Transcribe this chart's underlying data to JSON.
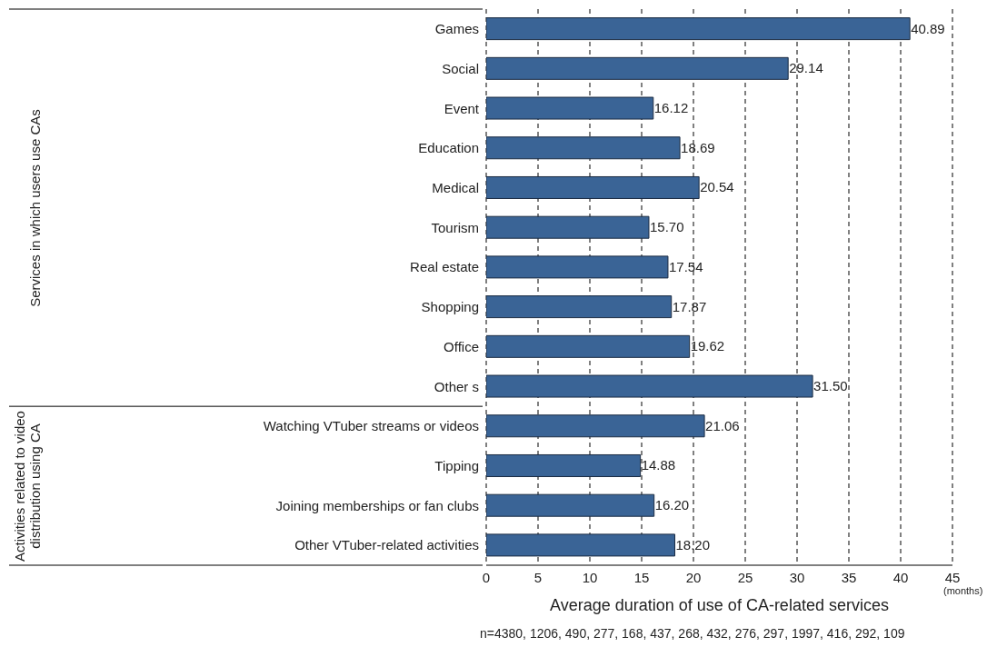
{
  "chart_data": {
    "type": "bar",
    "orientation": "horizontal",
    "xlabel": "Average duration of use of CA-related services",
    "categories": [
      "Games",
      "Social",
      "Event",
      "Education",
      "Medical",
      "Tourism",
      "Real estate",
      "Shopping",
      "Office",
      "Other s",
      "Watching VTuber streams or videos",
      "Tipping",
      "Joining memberships or fan clubs",
      "Other VTuber-related activities"
    ],
    "values": [
      40.89,
      29.14,
      16.12,
      18.69,
      20.54,
      15.7,
      17.54,
      17.87,
      19.62,
      31.5,
      21.06,
      14.88,
      16.2,
      18.2
    ],
    "value_labels": [
      "40.89",
      "29.14",
      "16.12",
      "18.69",
      "20.54",
      "15.70",
      "17.54",
      "17.87",
      "19.62",
      "31.50",
      "21.06",
      "14.88",
      "16.20",
      "18.20"
    ],
    "color": "#3a6496",
    "xlim": [
      0,
      45
    ],
    "xticks": [
      0,
      5,
      10,
      15,
      20,
      25,
      30,
      35,
      40,
      45
    ],
    "grid": "x",
    "annotations": [
      "Services in which users use CAs",
      "Activities related to video distribution using CA",
      "(months)",
      "n=4380, 1206, 490, 277, 168, 437, 268, 432, 276, 297, 1997, 416, 292, 109"
    ]
  }
}
